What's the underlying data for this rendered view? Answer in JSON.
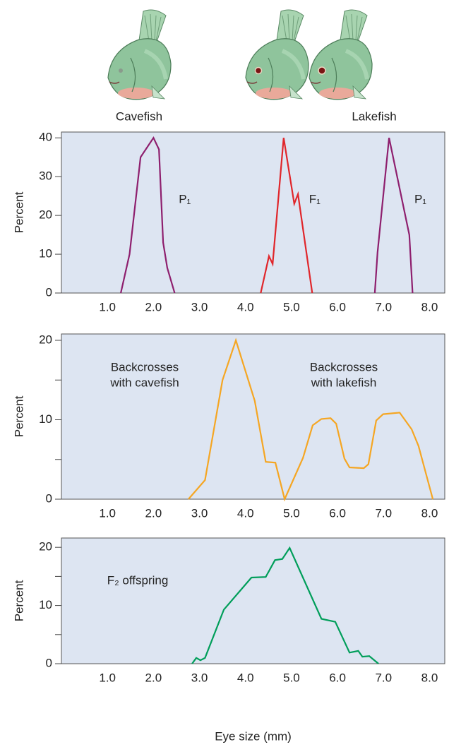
{
  "figure": {
    "labels": [
      "Cavefish",
      "Lakefish"
    ]
  },
  "chart_data": [
    {
      "type": "line",
      "ylabel": "Percent",
      "xlim": [
        0,
        8.33
      ],
      "ylim": [
        0,
        41.5
      ],
      "xticks": [
        {
          "value": 1,
          "label": "1.0"
        },
        {
          "value": 2,
          "label": "2.0"
        },
        {
          "value": 3,
          "label": "3.0"
        },
        {
          "value": 4,
          "label": "4.0"
        },
        {
          "value": 5,
          "label": "5.0"
        },
        {
          "value": 6,
          "label": "6.0"
        },
        {
          "value": 7,
          "label": "7.0"
        },
        {
          "value": 8,
          "label": "8.0"
        }
      ],
      "yticks": [
        0,
        10,
        20,
        30,
        40
      ],
      "series": [
        {
          "name": "P₁",
          "color": "#8e1f6e",
          "x": [
            1.29,
            1.48,
            1.72,
            2.0,
            2.12,
            2.21,
            2.3,
            2.46
          ],
          "values": [
            0,
            10,
            35,
            40,
            37,
            13,
            6.5,
            0
          ]
        },
        {
          "name": "F₁",
          "color": "#e0262b",
          "x": [
            4.33,
            4.51,
            4.59,
            4.83,
            5.06,
            5.14,
            5.45
          ],
          "values": [
            0,
            9.5,
            7.5,
            40,
            23,
            25.5,
            0
          ]
        },
        {
          "name": "P₁",
          "color": "#8e1f6e",
          "x": [
            6.81,
            6.87,
            7.12,
            7.56,
            7.63
          ],
          "values": [
            0,
            10.5,
            40,
            15,
            0
          ]
        }
      ]
    },
    {
      "type": "line",
      "ylabel": "Percent",
      "xlim": [
        0,
        8.33
      ],
      "ylim": [
        0,
        20.8
      ],
      "xticks": [
        {
          "value": 1,
          "label": "1.0"
        },
        {
          "value": 2,
          "label": "2.0"
        },
        {
          "value": 3,
          "label": "3.0"
        },
        {
          "value": 4,
          "label": "4.0"
        },
        {
          "value": 5,
          "label": "5.0"
        },
        {
          "value": 6,
          "label": "6.0"
        },
        {
          "value": 7,
          "label": "7.0"
        },
        {
          "value": 8,
          "label": "8.0"
        }
      ],
      "yticks": [
        0,
        10,
        20
      ],
      "minor_yticks": [
        5,
        15
      ],
      "annotations": [
        [
          "Backcrosses",
          "with cavefish"
        ],
        [
          "Backcrosses",
          "with lakefish"
        ]
      ],
      "series": [
        {
          "color": "#f5a623",
          "x": [
            2.76,
            3.12,
            3.5,
            3.79,
            4.2,
            4.44,
            4.65,
            4.85,
            5.25,
            5.46,
            5.65,
            5.85,
            5.97,
            6.15,
            6.26,
            6.57,
            6.67,
            6.84,
            6.99,
            7.35,
            7.61,
            7.76,
            8.07
          ],
          "values": [
            0,
            2.4,
            15,
            20,
            12.4,
            4.7,
            4.6,
            0,
            5.2,
            9.3,
            10.1,
            10.2,
            9.5,
            5.1,
            4.0,
            3.9,
            4.4,
            9.9,
            10.7,
            10.9,
            8.8,
            6.7,
            0
          ]
        }
      ]
    },
    {
      "type": "line",
      "ylabel": "Percent",
      "xlabel": "Eye size (mm)",
      "xlim": [
        0,
        8.33
      ],
      "ylim": [
        0,
        21.6
      ],
      "xticks": [
        {
          "value": 1,
          "label": "1.0"
        },
        {
          "value": 2,
          "label": "2.0"
        },
        {
          "value": 3,
          "label": "3.0"
        },
        {
          "value": 4,
          "label": "4.0"
        },
        {
          "value": 5,
          "label": "5.0"
        },
        {
          "value": 6,
          "label": "6.0"
        },
        {
          "value": 7,
          "label": "7.0"
        },
        {
          "value": 8,
          "label": "8.0"
        }
      ],
      "yticks": [
        0,
        10,
        20
      ],
      "minor_yticks": [
        5,
        15
      ],
      "annotations": [
        [
          "F₂ offspring"
        ]
      ],
      "series": [
        {
          "color": "#009e5a",
          "x": [
            2.84,
            2.93,
            3.02,
            3.12,
            3.53,
            4.13,
            4.44,
            4.64,
            4.8,
            4.96,
            5.65,
            5.95,
            6.26,
            6.45,
            6.54,
            6.69,
            6.89
          ],
          "values": [
            0,
            1.0,
            0.6,
            1.0,
            9.3,
            14.8,
            14.9,
            17.8,
            18.0,
            19.9,
            7.7,
            7.2,
            1.9,
            2.2,
            1.2,
            1.3,
            0
          ]
        }
      ]
    }
  ]
}
